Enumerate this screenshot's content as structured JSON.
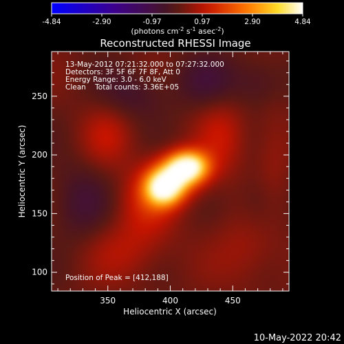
{
  "colorbar": {
    "ticks": [
      "-4.84",
      "-2.90",
      "-0.97",
      "0.97",
      "2.90",
      "4.84"
    ],
    "units_prefix": "(photons cm",
    "units_exp1": "-2",
    "units_mid": " s",
    "units_exp2": "-1",
    "units_mid2": " asec",
    "units_exp3": "-2",
    "units_suffix": ")",
    "range": [
      -4.84,
      4.84
    ],
    "colormap": "rainbow-3-hot"
  },
  "plot": {
    "title": "Reconstructed RHESSI Image",
    "xlabel": "Heliocentric X (arcsec)",
    "ylabel": "Heliocentric Y (arcsec)",
    "annotation_lines": [
      "13-May-2012 07:21:32.000 to 07:27:32.000",
      "Detectors: 3F 5F 6F 7F 8F, Att 0",
      "Energy Range: 3.0 - 6.0 keV",
      "Clean    Total counts: 3.36E+05"
    ],
    "peak_text": "Position of Peak = [412,188]",
    "footer_timestamp": "10-May-2022 20:42"
  },
  "chart_data": {
    "type": "heatmap",
    "title": "Reconstructed RHESSI Image",
    "xlabel": "Heliocentric X (arcsec)",
    "ylabel": "Heliocentric Y (arcsec)",
    "xlim": [
      305,
      495
    ],
    "ylim": [
      84,
      288
    ],
    "xticks": [
      350,
      400,
      450
    ],
    "yticks": [
      100,
      150,
      200,
      250
    ],
    "peak": [
      412,
      188
    ],
    "value_range": [
      -4.84,
      4.84
    ],
    "sources": [
      {
        "x": 414,
        "y": 190,
        "amp": 4.6,
        "sx": 11,
        "sy": 9
      },
      {
        "x": 395,
        "y": 172,
        "amp": 4.2,
        "sx": 10,
        "sy": 10
      },
      {
        "x": 404,
        "y": 181,
        "amp": 2.2,
        "sx": 14,
        "sy": 12
      },
      {
        "x": 382,
        "y": 160,
        "amp": 1.1,
        "sx": 16,
        "sy": 20
      },
      {
        "x": 440,
        "y": 215,
        "amp": 0.9,
        "sx": 14,
        "sy": 24
      },
      {
        "x": 350,
        "y": 215,
        "amp": 0.8,
        "sx": 14,
        "sy": 18
      },
      {
        "x": 365,
        "y": 120,
        "amp": 0.7,
        "sx": 22,
        "sy": 18
      },
      {
        "x": 460,
        "y": 120,
        "amp": 0.6,
        "sx": 18,
        "sy": 22
      },
      {
        "x": 480,
        "y": 200,
        "amp": 0.5,
        "sx": 10,
        "sy": 30
      },
      {
        "x": 330,
        "y": 160,
        "amp": -0.8,
        "sx": 16,
        "sy": 22
      },
      {
        "x": 370,
        "y": 250,
        "amp": -0.7,
        "sx": 18,
        "sy": 14
      },
      {
        "x": 430,
        "y": 260,
        "amp": -0.8,
        "sx": 18,
        "sy": 16
      },
      {
        "x": 470,
        "y": 260,
        "amp": -0.6,
        "sx": 14,
        "sy": 14
      },
      {
        "x": 470,
        "y": 160,
        "amp": -0.5,
        "sx": 12,
        "sy": 18
      }
    ]
  }
}
